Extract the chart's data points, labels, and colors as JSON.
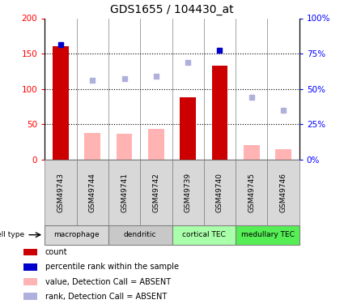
{
  "title": "GDS1655 / 104430_at",
  "samples": [
    "GSM49743",
    "GSM49744",
    "GSM49741",
    "GSM49742",
    "GSM49739",
    "GSM49740",
    "GSM49745",
    "GSM49746"
  ],
  "count_values": [
    160,
    null,
    null,
    null,
    88,
    133,
    null,
    null
  ],
  "count_color": "#cc0000",
  "value_absent": [
    null,
    38,
    37,
    43,
    null,
    null,
    20,
    15
  ],
  "value_absent_color": "#ffb3b3",
  "rank_present": [
    163,
    null,
    null,
    null,
    null,
    155,
    null,
    null
  ],
  "rank_present_color": "#0000cc",
  "rank_absent": [
    null,
    112,
    115,
    118,
    137,
    null,
    88,
    70
  ],
  "rank_absent_color": "#b0b0dd",
  "left_ylim": [
    0,
    200
  ],
  "right_ylim": [
    0,
    200
  ],
  "right_yticks": [
    0,
    50,
    100,
    150,
    200
  ],
  "right_yticklabels": [
    "0%",
    "25%",
    "50%",
    "75%",
    "100%"
  ],
  "left_yticks": [
    0,
    50,
    100,
    150,
    200
  ],
  "left_yticklabels": [
    "0",
    "50",
    "100",
    "150",
    "200"
  ],
  "dotted_lines": [
    50,
    100,
    150
  ],
  "cell_groups": [
    {
      "label": "macrophage",
      "start": 0,
      "end": 1,
      "color": "#d8d8d8"
    },
    {
      "label": "dendritic",
      "start": 2,
      "end": 3,
      "color": "#c8c8c8"
    },
    {
      "label": "cortical TEC",
      "start": 4,
      "end": 5,
      "color": "#aaffaa"
    },
    {
      "label": "medullary TEC",
      "start": 6,
      "end": 7,
      "color": "#55ee55"
    }
  ],
  "legend_items": [
    {
      "label": "count",
      "color": "#cc0000"
    },
    {
      "label": "percentile rank within the sample",
      "color": "#0000cc"
    },
    {
      "label": "value, Detection Call = ABSENT",
      "color": "#ffb3b3"
    },
    {
      "label": "rank, Detection Call = ABSENT",
      "color": "#b0b0dd"
    }
  ],
  "bar_width": 0.5
}
